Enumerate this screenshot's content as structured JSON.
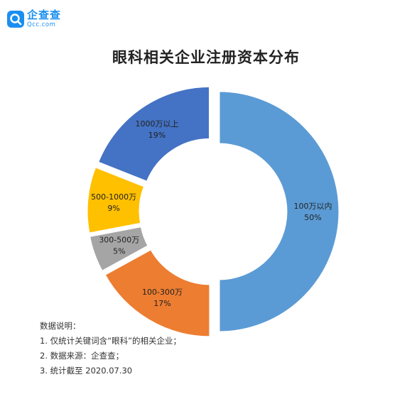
{
  "brand": {
    "name": "企查查",
    "domain": "Qcc.com",
    "color": "#1b8ff0"
  },
  "title": "眼科相关企业注册资本分布",
  "chart_data": {
    "type": "pie",
    "variant": "donut",
    "title": "眼科相关企业注册资本分布",
    "slices": [
      {
        "label": "100万以内",
        "percent": "50%",
        "value": 50,
        "color": "#5b9bd5"
      },
      {
        "label": "100-300万",
        "percent": "17%",
        "value": 17,
        "color": "#ed7d31"
      },
      {
        "label": "300-500万",
        "percent": "5%",
        "value": 5,
        "color": "#a5a5a5"
      },
      {
        "label": "500-1000万",
        "percent": "9%",
        "value": 9,
        "color": "#ffc000"
      },
      {
        "label": "1000万以上",
        "percent": "19%",
        "value": 19,
        "color": "#4472c4"
      }
    ]
  },
  "notes": {
    "heading": "数据说明：",
    "items": [
      "1. 仅统计关键词含“眼科”的相关企业；",
      "2. 数据来源：企查查；",
      "3. 统计截至 2020.07.30"
    ]
  }
}
